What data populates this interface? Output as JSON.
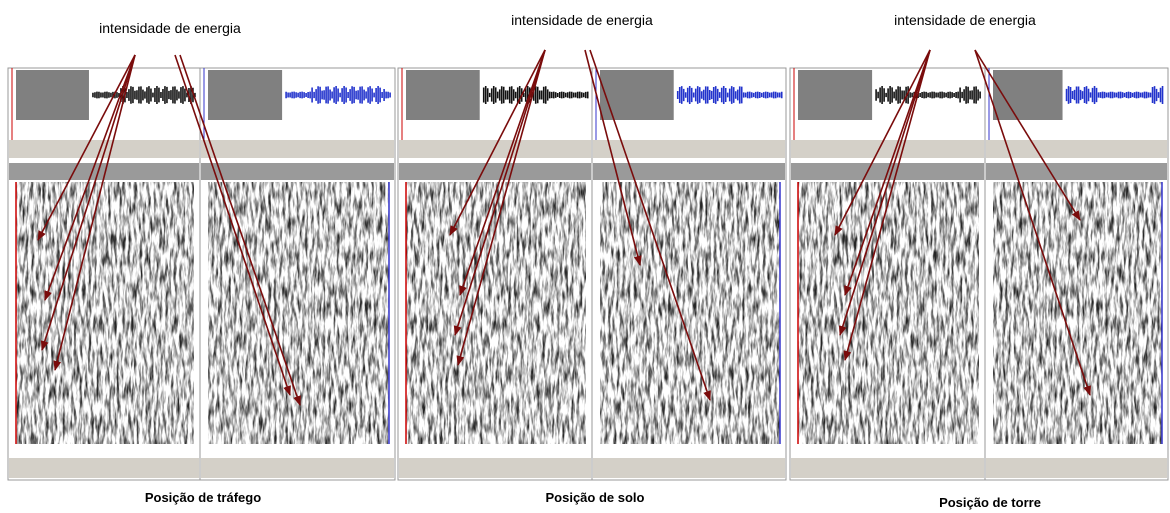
{
  "panels": [
    {
      "annotation": "intensidade de energia",
      "caption": "Posição de tráfego"
    },
    {
      "annotation": "intensidade de energia",
      "caption": "Posição de solo"
    },
    {
      "annotation": "intensidade de energia",
      "caption": "Posição de torre"
    }
  ]
}
